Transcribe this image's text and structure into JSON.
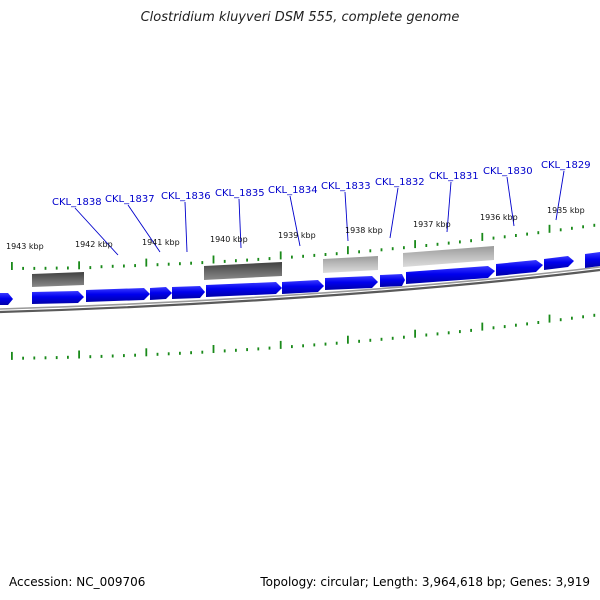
{
  "title": "Clostridium kluyveri DSM 555, complete genome",
  "footer": {
    "accession": "Accession: NC_009706",
    "summary": "Topology: circular; Length: 3,964,618 bp; Genes: 3,919"
  },
  "kbp_labels": [
    "1943 kbp",
    "1942 kbp",
    "1941 kbp",
    "1940 kbp",
    "1939 kbp",
    "1938 kbp",
    "1937 kbp",
    "1936 kbp",
    "1935 kbp"
  ],
  "gene_labels": [
    "CKL_1838",
    "CKL_1837",
    "CKL_1836",
    "CKL_1835",
    "CKL_1834",
    "CKL_1833",
    "CKL_1832",
    "CKL_1831",
    "CKL_1830",
    "CKL_1829"
  ],
  "colors": {
    "gene_fill": "#0000ee",
    "gene_dark": "#0000aa",
    "backbone": "#777777",
    "tick": "#1a8a1a",
    "label": "#0000cc",
    "feature_dark": "#555555",
    "feature_light": "#b4b4b4"
  }
}
